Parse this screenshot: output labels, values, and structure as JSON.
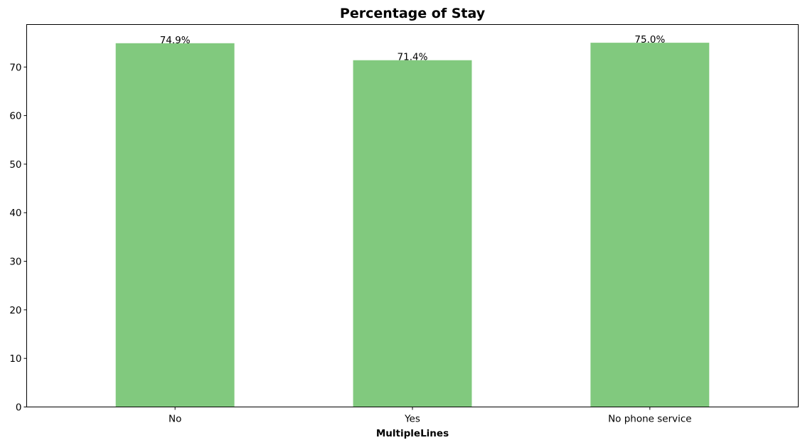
{
  "chart_data": {
    "type": "bar",
    "title": "Percentage of Stay",
    "xlabel": "MultipleLines",
    "ylabel": "",
    "categories": [
      "No",
      "Yes",
      "No phone service"
    ],
    "values": [
      74.9,
      71.4,
      75.0
    ],
    "data_labels": [
      "74.9%",
      "71.4%",
      "75.0%"
    ],
    "ylim": [
      0,
      78.75
    ],
    "yticks": [
      0,
      10,
      20,
      30,
      40,
      50,
      60,
      70
    ],
    "bar_color": "#81c97e",
    "grid": false,
    "legend": "none"
  }
}
